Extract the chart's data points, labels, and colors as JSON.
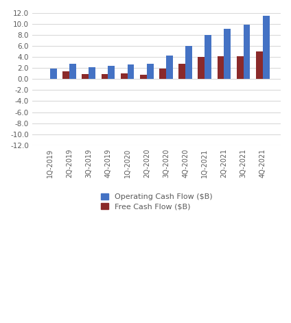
{
  "categories": [
    "1Q-2019",
    "2Q-2019",
    "3Q-2019",
    "4Q-2019",
    "1Q-2020",
    "2Q-2020",
    "3Q-2020",
    "4Q-2020",
    "1Q-2021",
    "2Q-2021",
    "3Q-2021",
    "4Q-2021"
  ],
  "operating_cash_flow": [
    1.9,
    2.8,
    2.2,
    2.4,
    2.6,
    2.8,
    4.3,
    6.0,
    8.0,
    9.1,
    9.9,
    11.5
  ],
  "free_cash_flow": [
    0.1,
    1.4,
    0.9,
    0.9,
    1.0,
    0.8,
    1.9,
    2.8,
    4.0,
    4.2,
    4.2,
    5.0
  ],
  "bar_color_operating": "#4472C4",
  "bar_color_free": "#8B2A2A",
  "legend_labels": [
    "Operating Cash Flow ($B)",
    "Free Cash Flow ($B)"
  ],
  "ylim": [
    -12.0,
    12.0
  ],
  "yticks": [
    -12.0,
    -10.0,
    -8.0,
    -6.0,
    -4.0,
    -2.0,
    0.0,
    2.0,
    4.0,
    6.0,
    8.0,
    10.0,
    12.0
  ],
  "background_color": "#ffffff",
  "plot_bg_color": "#ffffff",
  "grid_color": "#d9d9d9",
  "bar_width": 0.35,
  "tick_color": "#7f7f7f",
  "label_color": "#595959"
}
